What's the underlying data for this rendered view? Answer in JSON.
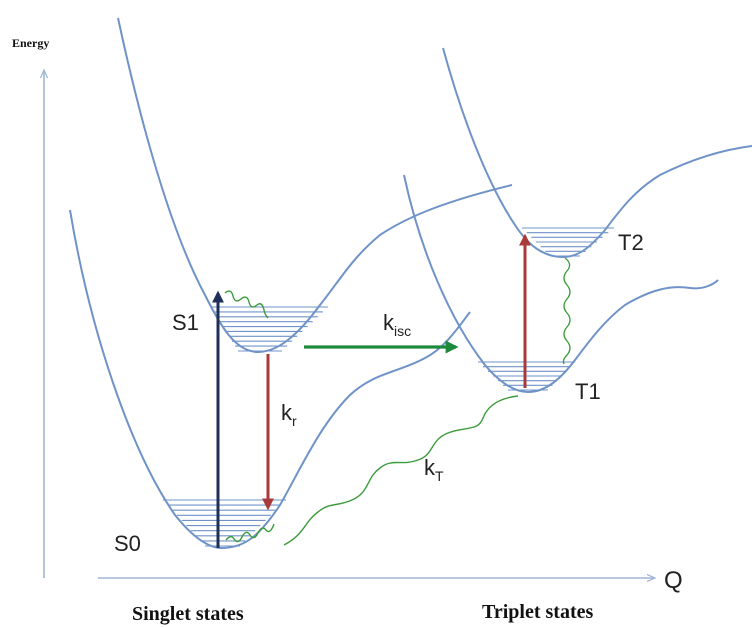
{
  "axes": {
    "y_label": "Energy",
    "x_label": "Q"
  },
  "states": {
    "s0": "S0",
    "s1": "S1",
    "t1": "T1",
    "t2": "T2"
  },
  "rates": {
    "k_r": {
      "base": "k",
      "sub": "r"
    },
    "k_isc": {
      "base": "k",
      "sub": "isc"
    },
    "k_T": {
      "base": "k",
      "sub": "T"
    }
  },
  "groups": {
    "singlet": "Singlet states",
    "triplet": "Triplet states"
  },
  "colors": {
    "curve": "#6f93c8",
    "axis": "#9fb6d6",
    "excitation_arrow": "#1f2f57",
    "radiative_arrow": "#a83a3a",
    "isc_arrow": "#1e8a3c",
    "nonradiative": "#3a9b3a"
  }
}
